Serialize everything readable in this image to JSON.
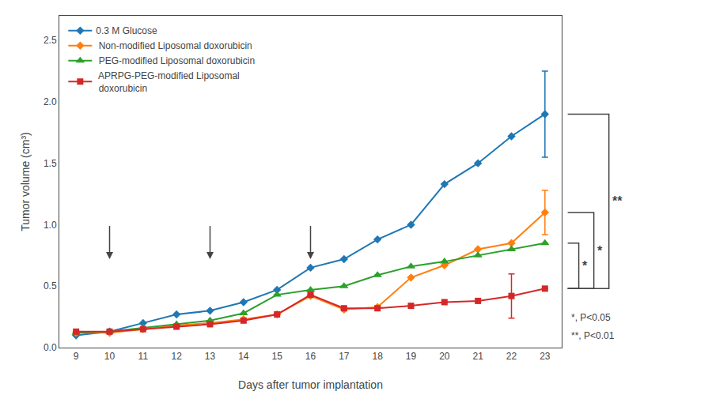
{
  "chart_data": {
    "type": "line",
    "xlabel": "Days after tumor implantation",
    "ylabel": "Tumor volume (cm³)",
    "x": [
      9,
      10,
      11,
      12,
      13,
      14,
      15,
      16,
      17,
      18,
      19,
      20,
      21,
      22,
      23
    ],
    "series": [
      {
        "name": "0.3 M Glucose",
        "marker": "diamond",
        "values": [
          0.1,
          0.13,
          0.2,
          0.27,
          0.3,
          0.37,
          0.47,
          0.65,
          0.72,
          0.88,
          1.0,
          1.33,
          1.5,
          1.72,
          1.9
        ],
        "errors": [
          0.0,
          0.0,
          0.0,
          0.0,
          0.0,
          0.0,
          0.0,
          0.0,
          0.0,
          0.0,
          0.0,
          0.0,
          0.0,
          0.0,
          0.35
        ]
      },
      {
        "name": " Non-modified Liposomal doxorubicin",
        "marker": "diamond",
        "values": [
          0.12,
          0.12,
          0.15,
          0.18,
          0.2,
          0.23,
          0.27,
          0.42,
          0.31,
          0.33,
          0.57,
          0.67,
          0.8,
          0.85,
          1.1
        ],
        "errors": [
          0.0,
          0.0,
          0.0,
          0.0,
          0.0,
          0.0,
          0.0,
          0.0,
          0.0,
          0.0,
          0.0,
          0.0,
          0.0,
          0.0,
          0.18
        ]
      },
      {
        "name": " PEG-modified Liposomal doxorubicin",
        "marker": "triangle",
        "values": [
          0.12,
          0.13,
          0.16,
          0.19,
          0.22,
          0.28,
          0.43,
          0.47,
          0.5,
          0.59,
          0.66,
          0.7,
          0.75,
          0.8,
          0.85
        ],
        "errors": [
          0.0,
          0.0,
          0.0,
          0.0,
          0.0,
          0.0,
          0.0,
          0.0,
          0.0,
          0.0,
          0.0,
          0.0,
          0.0,
          0.0,
          0.0
        ]
      },
      {
        "name": " APRPG-PEG-modified Liposomal\n doxorubicin",
        "marker": "square",
        "values": [
          0.13,
          0.13,
          0.15,
          0.17,
          0.19,
          0.22,
          0.27,
          0.43,
          0.32,
          0.32,
          0.34,
          0.37,
          0.38,
          0.42,
          0.48
        ],
        "errors": [
          0.0,
          0.0,
          0.0,
          0.0,
          0.0,
          0.0,
          0.0,
          0.0,
          0.0,
          0.0,
          0.0,
          0.0,
          0.0,
          0.18,
          0.0
        ]
      }
    ],
    "xlim": [
      8.5,
      23.5
    ],
    "xticks": [
      9,
      10,
      11,
      12,
      13,
      14,
      15,
      16,
      17,
      18,
      19,
      20,
      21,
      22,
      23
    ],
    "ylim": [
      0,
      2.7
    ],
    "yticks": [
      {
        "value": 0,
        "label": "0.0"
      },
      0.5,
      {
        "value": 1,
        "label": "1.0"
      },
      1.5,
      {
        "value": 2,
        "label": "2.0"
      },
      2.5
    ],
    "grid": false,
    "legend": "upper left",
    "arrows": {
      "x": [
        10,
        13,
        16
      ],
      "y_start": 1.0,
      "y_end": 0.72
    },
    "brackets": [
      {
        "y_from": 0.48,
        "y_to": 0.85,
        "label": "*"
      },
      {
        "y_from": 0.48,
        "y_to": 1.1,
        "label": "*"
      },
      {
        "y_from": 0.48,
        "y_to": 1.9,
        "label": "**"
      }
    ],
    "annotations": [
      "*, P<0.05",
      "**, P<0.01"
    ]
  }
}
